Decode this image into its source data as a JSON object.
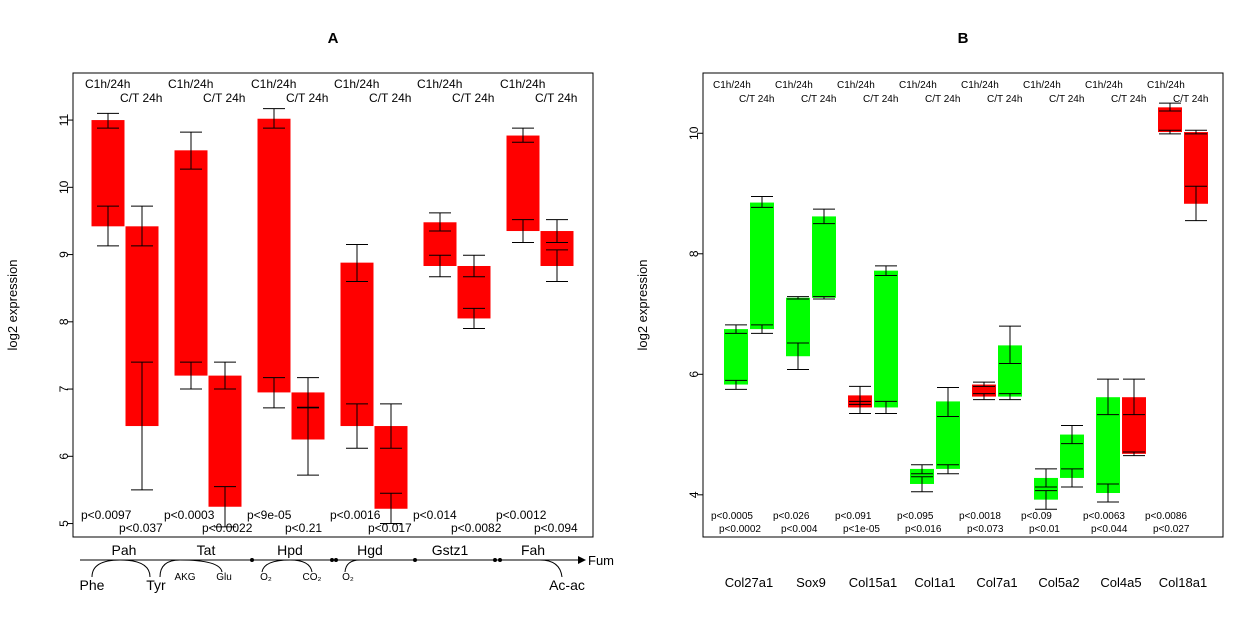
{
  "chart_data": [
    {
      "type": "floating-bar",
      "title": "A",
      "ylabel": "log2 expression",
      "ylim": [
        4.8,
        11.7
      ],
      "yticks": [
        5,
        6,
        7,
        8,
        9,
        10,
        11
      ],
      "grid": false,
      "legend": "none",
      "header_labels": [
        "C1h/24h",
        "C/T 24h"
      ],
      "genes": [
        {
          "name": "Pah",
          "pvals": [
            "p<0.0097",
            "p<0.037"
          ],
          "bars": [
            {
              "low": 9.42,
              "high": 11.0,
              "color": "#ff0000",
              "err_low": [
                9.13,
                9.72
              ],
              "err_high": [
                10.88,
                11.1
              ]
            },
            {
              "low": 6.45,
              "high": 9.42,
              "color": "#ff0000",
              "err_low": [
                5.5,
                7.4
              ],
              "err_high": [
                9.13,
                9.72
              ]
            }
          ]
        },
        {
          "name": "Tat",
          "pvals": [
            "p<0.0003",
            "p<0.0022"
          ],
          "bars": [
            {
              "low": 7.2,
              "high": 10.55,
              "color": "#ff0000",
              "err_low": [
                7.0,
                7.4
              ],
              "err_high": [
                10.27,
                10.82
              ]
            },
            {
              "low": 5.25,
              "high": 7.2,
              "color": "#ff0000",
              "err_low": [
                4.95,
                5.55
              ],
              "err_high": [
                7.0,
                7.4
              ]
            }
          ]
        },
        {
          "name": "Hpd",
          "pvals": [
            "p<9e-05",
            "p<0.21"
          ],
          "bars": [
            {
              "low": 6.95,
              "high": 11.02,
              "color": "#ff0000",
              "err_low": [
                6.72,
                7.17
              ],
              "err_high": [
                10.88,
                11.17
              ]
            },
            {
              "low": 6.25,
              "high": 6.95,
              "color": "#ff0000",
              "err_low": [
                5.72,
                6.73
              ],
              "err_high": [
                6.72,
                7.17
              ]
            }
          ]
        },
        {
          "name": "Hgd",
          "pvals": [
            "p<0.0016",
            "p<0.017"
          ],
          "bars": [
            {
              "low": 6.45,
              "high": 8.88,
              "color": "#ff0000",
              "err_low": [
                6.12,
                6.78
              ],
              "err_high": [
                8.6,
                9.15
              ]
            },
            {
              "low": 5.22,
              "high": 6.45,
              "color": "#ff0000",
              "err_low": [
                5.0,
                5.45
              ],
              "err_high": [
                6.12,
                6.78
              ]
            }
          ]
        },
        {
          "name": "Gstz1",
          "pvals": [
            "p<0.014",
            "p<0.0082"
          ],
          "bars": [
            {
              "low": 8.83,
              "high": 9.48,
              "color": "#ff0000",
              "err_low": [
                8.67,
                8.99
              ],
              "err_high": [
                9.35,
                9.62
              ]
            },
            {
              "low": 8.05,
              "high": 8.83,
              "color": "#ff0000",
              "err_low": [
                7.9,
                8.2
              ],
              "err_high": [
                8.67,
                8.99
              ]
            }
          ]
        },
        {
          "name": "Fah",
          "pvals": [
            "p<0.0012",
            "p<0.094"
          ],
          "bars": [
            {
              "low": 9.35,
              "high": 10.77,
              "color": "#ff0000",
              "err_low": [
                9.18,
                9.52
              ],
              "err_high": [
                10.67,
                10.88
              ]
            },
            {
              "low": 8.83,
              "high": 9.35,
              "color": "#ff0000",
              "err_low": [
                8.6,
                9.07
              ],
              "err_high": [
                9.18,
                9.52
              ]
            }
          ]
        }
      ],
      "pathway": {
        "enzymes": [
          "Pah",
          "Tat",
          "Hpd",
          "Hgd",
          "Gstz1",
          "Fah"
        ],
        "metabolites": [
          "Phe",
          "Tyr",
          "Ac-ac"
        ],
        "end_product": "Fum",
        "cofactors": [
          "AKG",
          "Glu",
          "O₂",
          "CO₂",
          "O₂"
        ]
      }
    },
    {
      "type": "floating-bar",
      "title": "B",
      "ylabel": "log2 expression",
      "ylim": [
        3.3,
        11.0
      ],
      "yticks": [
        4,
        6,
        8,
        10
      ],
      "grid": false,
      "legend": "none",
      "header_labels": [
        "C1h/24h",
        "C/T 24h"
      ],
      "genes": [
        {
          "name": "Col27a1",
          "pvals": [
            "p<0.0005",
            "p<0.0002"
          ],
          "bars": [
            {
              "low": 5.83,
              "high": 6.75,
              "color": "#00ff00",
              "err_low": [
                5.75,
                5.9
              ],
              "err_high": [
                6.68,
                6.82
              ]
            },
            {
              "low": 6.75,
              "high": 8.85,
              "color": "#00ff00",
              "err_low": [
                6.68,
                6.82
              ],
              "err_high": [
                8.77,
                8.95
              ]
            }
          ]
        },
        {
          "name": "Sox9",
          "pvals": [
            "p<0.026",
            "p<0.004"
          ],
          "bars": [
            {
              "low": 6.3,
              "high": 7.27,
              "color": "#00ff00",
              "err_low": [
                6.08,
                6.52
              ],
              "err_high": [
                7.25,
                7.29
              ]
            },
            {
              "low": 7.27,
              "high": 8.62,
              "color": "#00ff00",
              "err_low": [
                7.25,
                7.29
              ],
              "err_high": [
                8.5,
                8.74
              ]
            }
          ]
        },
        {
          "name": "Col15a1",
          "pvals": [
            "p<0.091",
            "p<1e-05"
          ],
          "bars": [
            {
              "low": 5.45,
              "high": 5.65,
              "color": "#ff0000",
              "err_low": [
                5.35,
                5.55
              ],
              "err_high": [
                5.5,
                5.8
              ]
            },
            {
              "low": 5.45,
              "high": 7.72,
              "color": "#00ff00",
              "err_low": [
                5.35,
                5.55
              ],
              "err_high": [
                7.64,
                7.8
              ]
            }
          ]
        },
        {
          "name": "Col1a1",
          "pvals": [
            "p<0.095",
            "p<0.016"
          ],
          "bars": [
            {
              "low": 4.18,
              "high": 4.43,
              "color": "#00ff00",
              "err_low": [
                4.05,
                4.3
              ],
              "err_high": [
                4.35,
                4.5
              ]
            },
            {
              "low": 4.43,
              "high": 5.55,
              "color": "#00ff00",
              "err_low": [
                4.35,
                4.5
              ],
              "err_high": [
                5.3,
                5.78
              ]
            }
          ]
        },
        {
          "name": "Col7a1",
          "pvals": [
            "p<0.0018",
            "p<0.073"
          ],
          "bars": [
            {
              "low": 5.63,
              "high": 5.83,
              "color": "#ff0000",
              "err_low": [
                5.58,
                5.68
              ],
              "err_high": [
                5.8,
                5.87
              ]
            },
            {
              "low": 5.63,
              "high": 6.48,
              "color": "#00ff00",
              "err_low": [
                5.58,
                5.68
              ],
              "err_high": [
                6.18,
                6.8
              ]
            }
          ]
        },
        {
          "name": "Col5a2",
          "pvals": [
            "p<0.09",
            "p<0.01"
          ],
          "bars": [
            {
              "low": 3.92,
              "high": 4.28,
              "color": "#00ff00",
              "err_low": [
                3.76,
                4.07
              ],
              "err_high": [
                4.13,
                4.43
              ]
            },
            {
              "low": 4.28,
              "high": 5.0,
              "color": "#00ff00",
              "err_low": [
                4.13,
                4.43
              ],
              "err_high": [
                4.85,
                5.15
              ]
            }
          ]
        },
        {
          "name": "Col4a5",
          "pvals": [
            "p<0.0063",
            "p<0.044"
          ],
          "bars": [
            {
              "low": 4.03,
              "high": 5.62,
              "color": "#00ff00",
              "err_low": [
                3.88,
                4.18
              ],
              "err_high": [
                5.33,
                5.92
              ]
            },
            {
              "low": 4.68,
              "high": 5.62,
              "color": "#ff0000",
              "err_low": [
                4.65,
                4.71
              ],
              "err_high": [
                5.33,
                5.92
              ]
            }
          ]
        },
        {
          "name": "Col18a1",
          "pvals": [
            "p<0.0086",
            "p<0.027"
          ],
          "bars": [
            {
              "low": 10.02,
              "high": 10.43,
              "color": "#ff0000",
              "err_low": [
                9.99,
                10.05
              ],
              "err_high": [
                10.37,
                10.5
              ]
            },
            {
              "low": 8.83,
              "high": 10.02,
              "color": "#ff0000",
              "err_low": [
                8.55,
                9.12
              ],
              "err_high": [
                9.99,
                10.05
              ]
            }
          ]
        }
      ]
    }
  ]
}
